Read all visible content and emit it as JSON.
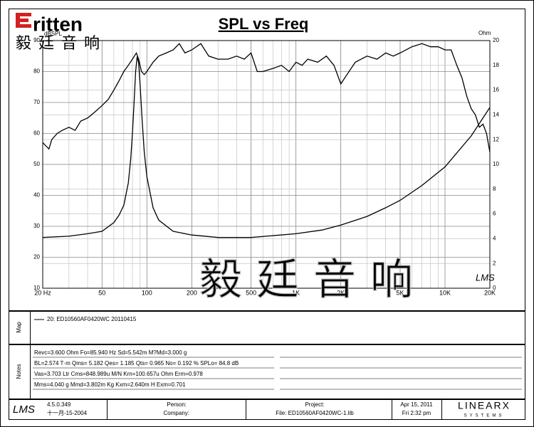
{
  "branding": {
    "logo": "ritten",
    "logo_chinese": "毅廷音响",
    "watermark": "毅廷音响"
  },
  "chart_data": {
    "type": "line",
    "title": "SPL vs Freq",
    "y_label": "dBSPL",
    "y2_label": "Ohm",
    "annotation": "LMS",
    "xscale": "log",
    "xlim": [
      20,
      20000
    ],
    "xticks": [
      {
        "value": 20,
        "label": "20 Hz"
      },
      50,
      100,
      200,
      500,
      {
        "value": 1000,
        "label": "1K"
      },
      {
        "value": 2000,
        "label": "2K"
      },
      {
        "value": 5000,
        "label": "5K"
      },
      {
        "value": 10000,
        "label": "10K"
      },
      {
        "value": 20000,
        "label": "20K"
      }
    ],
    "ylim": [
      10,
      90
    ],
    "yticks": [
      10,
      20,
      30,
      40,
      50,
      60,
      70,
      80,
      90
    ],
    "y2lim": [
      0,
      20
    ],
    "y2ticks": [
      0,
      2,
      4,
      6,
      8,
      10,
      12,
      14,
      16,
      18,
      20
    ],
    "grid": true,
    "series": [
      {
        "name": "20: ED10560AF0420WC 20110415",
        "color": "#000000",
        "x": [
          20,
          21,
          22,
          23,
          25,
          27,
          30,
          33,
          36,
          40,
          45,
          50,
          55,
          60,
          65,
          70,
          75,
          80,
          85,
          88,
          92,
          96,
          100,
          110,
          120,
          135,
          150,
          165,
          180,
          200,
          230,
          260,
          300,
          350,
          400,
          450,
          500,
          550,
          600,
          700,
          800,
          900,
          1000,
          1100,
          1200,
          1400,
          1600,
          1800,
          2000,
          2200,
          2500,
          3000,
          3500,
          4000,
          4500,
          5000,
          6000,
          7000,
          8000,
          9000,
          10000,
          11000,
          12000,
          13000,
          14000,
          15000,
          16000,
          17000,
          18000,
          19000,
          20000
        ],
        "values": [
          57,
          56,
          55,
          58,
          60,
          61,
          62,
          61,
          64,
          65,
          67,
          69,
          71,
          74,
          77,
          80,
          82,
          84,
          86,
          84,
          80,
          79,
          80,
          83,
          85,
          86,
          87,
          89,
          86,
          87,
          89,
          85,
          84,
          84,
          85,
          84,
          86,
          80,
          80,
          81,
          82,
          80,
          83,
          82,
          84,
          83,
          85,
          82,
          76,
          79,
          83,
          85,
          84,
          86,
          85,
          86,
          88,
          89,
          88,
          88,
          87,
          87,
          82,
          78,
          72,
          68,
          66,
          62,
          63,
          60,
          54
        ]
      },
      {
        "axis": "y2",
        "color": "#000000",
        "x": [
          20,
          30,
          40,
          50,
          60,
          65,
          70,
          75,
          78,
          80,
          82,
          84,
          86,
          88,
          90,
          93,
          96,
          100,
          110,
          120,
          150,
          200,
          300,
          500,
          1000,
          1500,
          2000,
          3000,
          4000,
          5000,
          7000,
          10000,
          15000,
          20000
        ],
        "values": [
          4.1,
          4.2,
          4.4,
          4.6,
          5.3,
          5.9,
          6.7,
          8.5,
          10.5,
          12.5,
          15,
          17.5,
          18.7,
          18.2,
          16.5,
          13.5,
          11,
          9,
          6.5,
          5.5,
          4.6,
          4.3,
          4.1,
          4.1,
          4.4,
          4.7,
          5.1,
          5.8,
          6.5,
          7.1,
          8.3,
          9.8,
          12.3,
          14.6
        ]
      }
    ]
  },
  "map": {
    "label": "Map"
  },
  "notes": {
    "label": "Notes",
    "lines": [
      "Revc=3.600 Ohm  Fo=85.940 Hz  Sd=5.542m M?Md=3.000 g",
      "BL=2.574 T·m  Qms= 5.182  Qes= 1.185  Qts= 0.965  No= 0.192 %  SPLo= 84.8 dB",
      "Vas=3.703 Ltr  Cms=848.989u M/N  Krn=100.657u Ohm  Erm=0.978",
      "Mms=4.040 g  Mmd=3.802m Kg  Kxm=2.640m H  Exm=0.701"
    ]
  },
  "footer": {
    "lms": "LMS",
    "version": "4.5.0.349",
    "build_date": "十一月-15-2004",
    "person": "Person:",
    "company": "Company:",
    "project": "Project:",
    "file": "File: ED10560AF0420WC-1.lib",
    "date": "Apr 15, 2011",
    "time": "Fri  2:32 pm",
    "brand": "LINEARX",
    "brand_sub": "SYSTEMS"
  }
}
